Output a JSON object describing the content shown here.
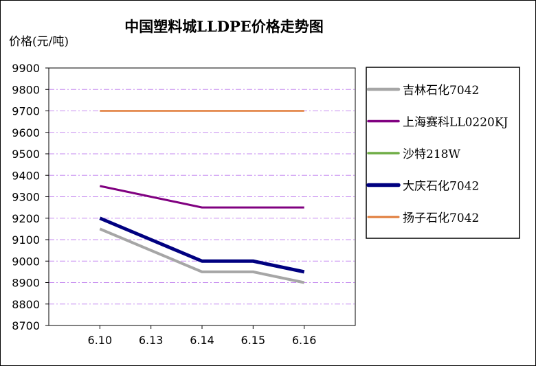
{
  "chart_data": {
    "type": "line",
    "title": "中国塑料城LLDPE价格走势图",
    "ylabel": "价格(元/吨)",
    "xlabel": "",
    "categories": [
      "6.10",
      "6.13",
      "6.14",
      "6.15",
      "6.16"
    ],
    "ylim": [
      8700,
      9900
    ],
    "yticks": [
      8700,
      8800,
      8900,
      9000,
      9100,
      9200,
      9300,
      9400,
      9500,
      9600,
      9700,
      9800,
      9900
    ],
    "grid": true,
    "legend_position": "right",
    "series": [
      {
        "name": "吉林石化7042",
        "color": "#a6a6a6",
        "values": [
          9150,
          9050,
          8950,
          8950,
          8900
        ]
      },
      {
        "name": "上海赛科LL0220KJ",
        "color": "#800080",
        "values": [
          9350,
          9300,
          9250,
          9250,
          9250
        ]
      },
      {
        "name": "沙特218W",
        "color": "#70ad47",
        "values": [
          null,
          null,
          null,
          null,
          null
        ]
      },
      {
        "name": "大庆石化7042",
        "color": "#000080",
        "values": [
          9200,
          9100,
          9000,
          9000,
          8950
        ]
      },
      {
        "name": "扬子石化7042",
        "color": "#e07b39",
        "values": [
          9700,
          9700,
          9700,
          9700,
          9700
        ]
      }
    ]
  }
}
